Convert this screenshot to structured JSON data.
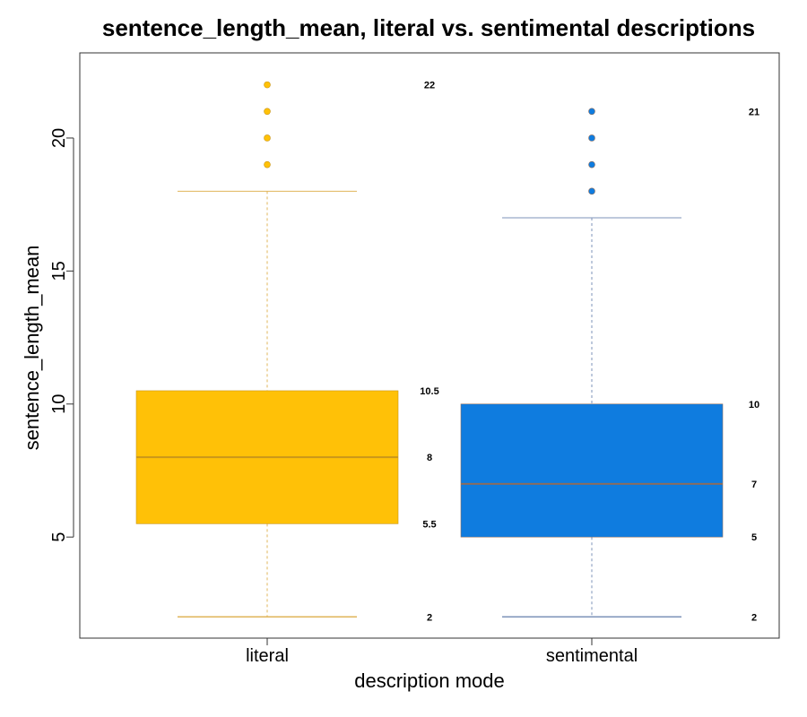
{
  "chart_data": {
    "type": "box",
    "title": "sentence_length_mean, literal vs. sentimental descriptions",
    "xlabel": "description mode",
    "ylabel": "sentence_length_mean",
    "ylim": [
      1.2,
      23.2
    ],
    "yticks": [
      5,
      10,
      15,
      20
    ],
    "grid": false,
    "categories": [
      "literal",
      "sentimental"
    ],
    "series": [
      {
        "category": "literal",
        "color": "#FFC107",
        "median_color": "#C9961A",
        "whisker_color": "#E0B55A",
        "whisker_low": 2,
        "q1": 5.5,
        "median": 8,
        "q3": 10.5,
        "whisker_high": 18,
        "outliers": [
          19,
          20,
          21,
          22
        ],
        "labels": {
          "max": "22",
          "q3": "10.5",
          "median": "8",
          "q1": "5.5",
          "min": "2"
        }
      },
      {
        "category": "sentimental",
        "color": "#0F7CDF",
        "median_color": "#8B6D5E",
        "whisker_color": "#7D93B8",
        "whisker_low": 2,
        "q1": 5,
        "median": 7,
        "q3": 10,
        "whisker_high": 17,
        "outliers": [
          18,
          19,
          20,
          21
        ],
        "labels": {
          "max": "21",
          "q3": "10",
          "median": "7",
          "q1": "5",
          "min": "2"
        }
      }
    ]
  }
}
